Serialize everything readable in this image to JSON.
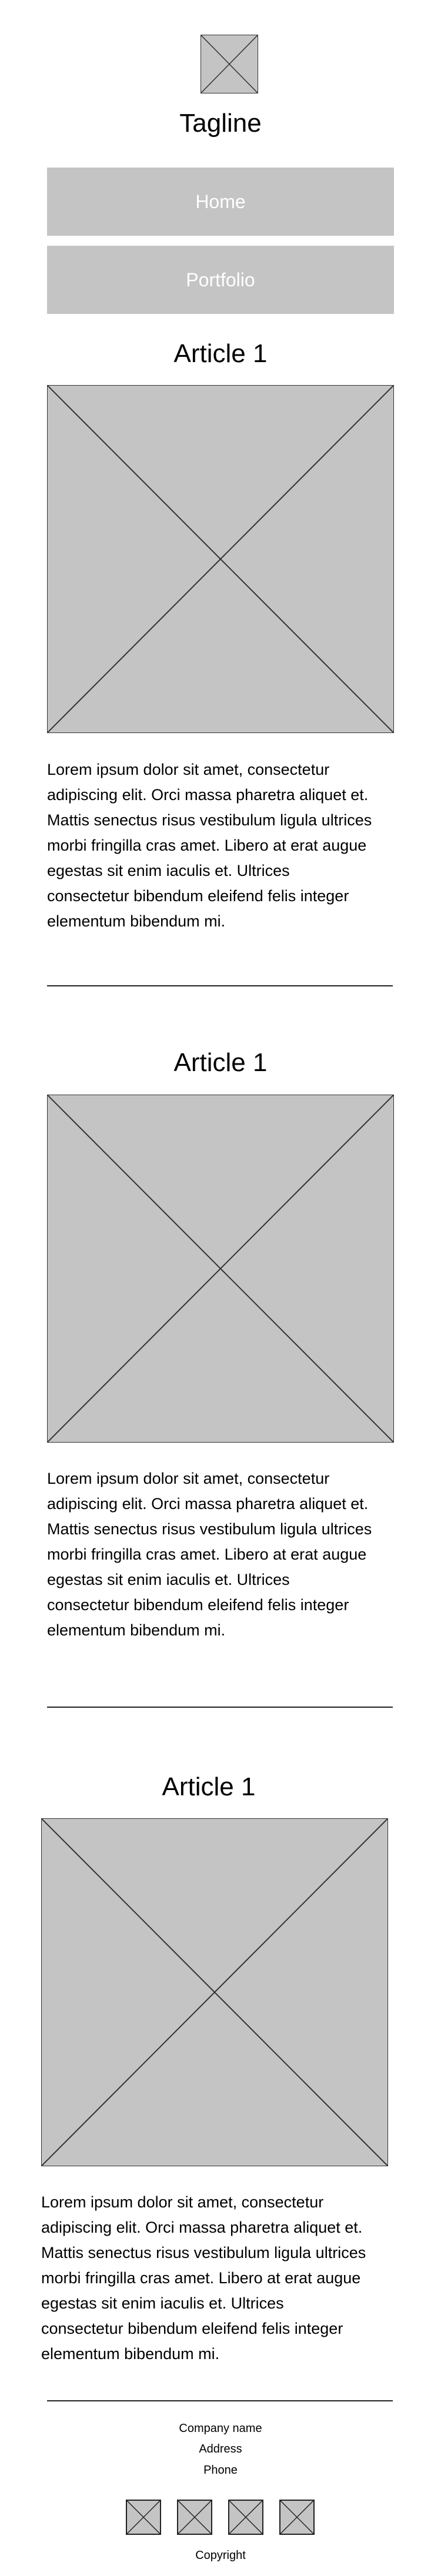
{
  "header": {
    "logo_icon": "image-placeholder-icon",
    "tagline": "Tagline"
  },
  "nav": {
    "items": [
      {
        "label": "Home"
      },
      {
        "label": "Portfolio"
      }
    ]
  },
  "articles": [
    {
      "title": "Article 1",
      "image_icon": "image-placeholder-icon",
      "lines": [
        "Lorem ipsum dolor sit amet, consectetur",
        "adipiscing elit. Orci massa pharetra aliquet et.",
        "Mattis senectus risus vestibulum ligula ultrices",
        "morbi fringilla cras amet. Libero at erat augue",
        "egestas sit enim iaculis et. Ultrices",
        "consectetur bibendum eleifend felis integer",
        "elementum bibendum mi."
      ]
    },
    {
      "title": "Article 1",
      "image_icon": "image-placeholder-icon",
      "lines": [
        "Lorem ipsum dolor sit amet, consectetur",
        "adipiscing elit. Orci massa pharetra aliquet et.",
        "Mattis senectus risus vestibulum ligula ultrices",
        "morbi fringilla cras amet. Libero at erat augue",
        "egestas sit enim iaculis et. Ultrices",
        "consectetur bibendum eleifend felis integer",
        "elementum bibendum mi."
      ]
    },
    {
      "title": "Article 1",
      "image_icon": "image-placeholder-icon",
      "lines": [
        "Lorem ipsum dolor sit amet, consectetur",
        "adipiscing elit. Orci massa pharetra aliquet et.",
        "Mattis senectus risus vestibulum ligula ultrices",
        "morbi fringilla cras amet. Libero at erat augue",
        "egestas sit enim iaculis et. Ultrices",
        "consectetur bibendum eleifend felis integer",
        "elementum bibendum mi."
      ]
    }
  ],
  "footer": {
    "company": "Company name",
    "address": "Address",
    "phone": "Phone",
    "social_icons": [
      "social-icon-1",
      "social-icon-2",
      "social-icon-3",
      "social-icon-4"
    ],
    "copyright": "Copyright"
  },
  "colors": {
    "placeholder": "#c4c4c4",
    "button_text": "#ffffff",
    "rule": "#222222"
  }
}
